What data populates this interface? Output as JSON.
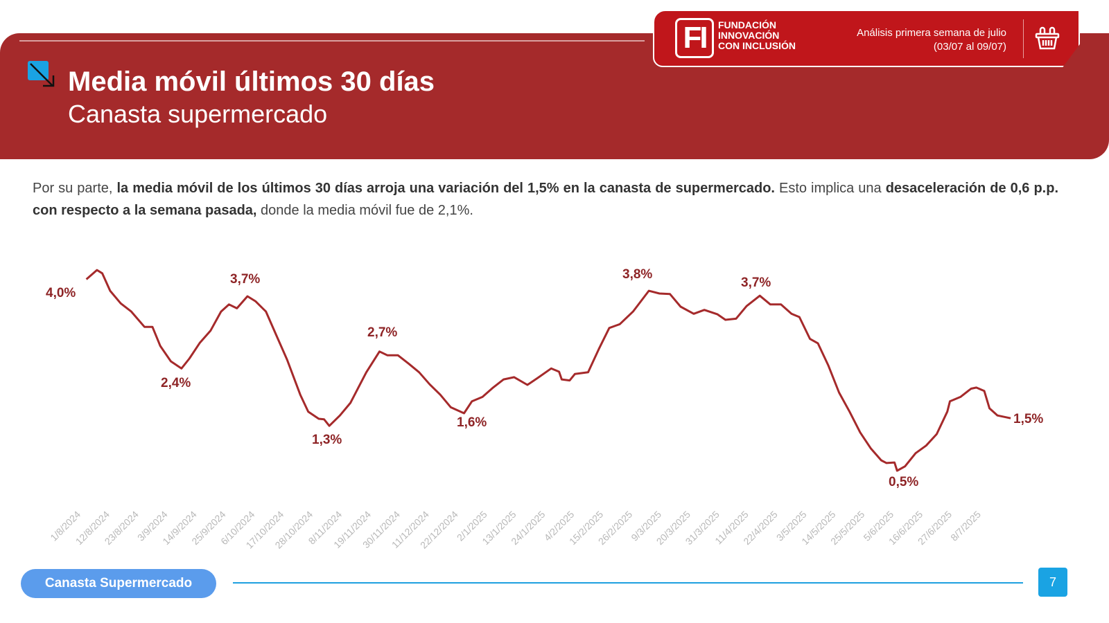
{
  "header": {
    "org_lines": [
      "FUNDACIÓN",
      "INNOVACIÓN",
      "CON INCLUSIÓN"
    ],
    "logo_text": "FI",
    "period_line1": "Análisis primera semana de julio",
    "period_line2": "(03/07 al 09/07)",
    "title": "Media móvil últimos 30 días",
    "subtitle": "Canasta supermercado"
  },
  "body": {
    "p1": "Por su parte, ",
    "b1": "la media móvil de los últimos 30 días arroja una variación del 1,5% en la canasta de supermercado.",
    "p2": " Esto implica una ",
    "b2": "desaceleración de 0,6 p.p. con respecto a la semana pasada,",
    "p3": " donde la media móvil fue de 2,1%."
  },
  "chart_data": {
    "type": "line",
    "title": "Media móvil últimos 30 días - Canasta supermercado",
    "xlabel": "",
    "ylabel": "",
    "x_unit": "days since 1/8/2024",
    "ylim": [
      0.5,
      4.2
    ],
    "color": "#a52a2b",
    "grid": false,
    "x_ticks": [
      "1/8/2024",
      "12/8/2024",
      "23/8/2024",
      "3/9/2024",
      "14/9/2024",
      "25/9/2024",
      "6/10/2024",
      "17/10/2024",
      "28/10/2024",
      "8/11/2024",
      "19/11/2024",
      "30/11/2024",
      "11/12/2024",
      "22/12/2024",
      "2/1/2025",
      "13/1/2025",
      "24/1/2025",
      "4/2/2025",
      "15/2/2025",
      "26/2/2025",
      "9/3/2025",
      "20/3/2025",
      "31/3/2025",
      "11/4/2025",
      "22/4/2025",
      "3/5/2025",
      "14/5/2025",
      "25/5/2025",
      "5/6/2025",
      "16/6/2025",
      "27/6/2025",
      "8/7/2025"
    ],
    "x": [
      2,
      6,
      8,
      11,
      15,
      19,
      24,
      27,
      30,
      34,
      38,
      41,
      45,
      49,
      53,
      56,
      59,
      63,
      66,
      70,
      74,
      78,
      83,
      86,
      90,
      92,
      94,
      98,
      102,
      105,
      108,
      113,
      116,
      120,
      124,
      128,
      132,
      136,
      140,
      145,
      148,
      152,
      156,
      160,
      164,
      169,
      173,
      178,
      181,
      182,
      185,
      187,
      192,
      196,
      200,
      204,
      209,
      215,
      219,
      223,
      227,
      232,
      236,
      241,
      244,
      248,
      252,
      257,
      261,
      265,
      269,
      272,
      276,
      279,
      283,
      287,
      291,
      295,
      299,
      303,
      305,
      308,
      309,
      312,
      316,
      320,
      324,
      328,
      329,
      333,
      337,
      339,
      342,
      344,
      347,
      352
    ],
    "values": [
      4.0,
      4.17,
      4.11,
      3.79,
      3.56,
      3.41,
      3.13,
      3.13,
      2.78,
      2.5,
      2.37,
      2.55,
      2.84,
      3.06,
      3.41,
      3.54,
      3.47,
      3.69,
      3.6,
      3.41,
      2.97,
      2.53,
      1.89,
      1.58,
      1.45,
      1.44,
      1.32,
      1.51,
      1.74,
      2.02,
      2.3,
      2.68,
      2.61,
      2.61,
      2.46,
      2.3,
      2.08,
      1.89,
      1.66,
      1.55,
      1.77,
      1.85,
      2.02,
      2.17,
      2.21,
      2.07,
      2.2,
      2.37,
      2.31,
      2.17,
      2.15,
      2.27,
      2.3,
      2.72,
      3.11,
      3.18,
      3.41,
      3.79,
      3.74,
      3.73,
      3.5,
      3.37,
      3.44,
      3.36,
      3.26,
      3.28,
      3.51,
      3.7,
      3.54,
      3.54,
      3.37,
      3.31,
      2.91,
      2.83,
      2.42,
      1.93,
      1.58,
      1.2,
      0.91,
      0.69,
      0.64,
      0.65,
      0.5,
      0.58,
      0.82,
      0.96,
      1.17,
      1.58,
      1.77,
      1.85,
      2.0,
      2.02,
      1.96,
      1.64,
      1.51,
      1.46
    ],
    "annotations": [
      "4,0%",
      "3,7%",
      "2,4%",
      "1,3%",
      "2,7%",
      "1,6%",
      "3,8%",
      "3,7%",
      "0,5%",
      "1,5%"
    ]
  },
  "footer": {
    "section": "Canasta Supermercado",
    "page": "7"
  }
}
